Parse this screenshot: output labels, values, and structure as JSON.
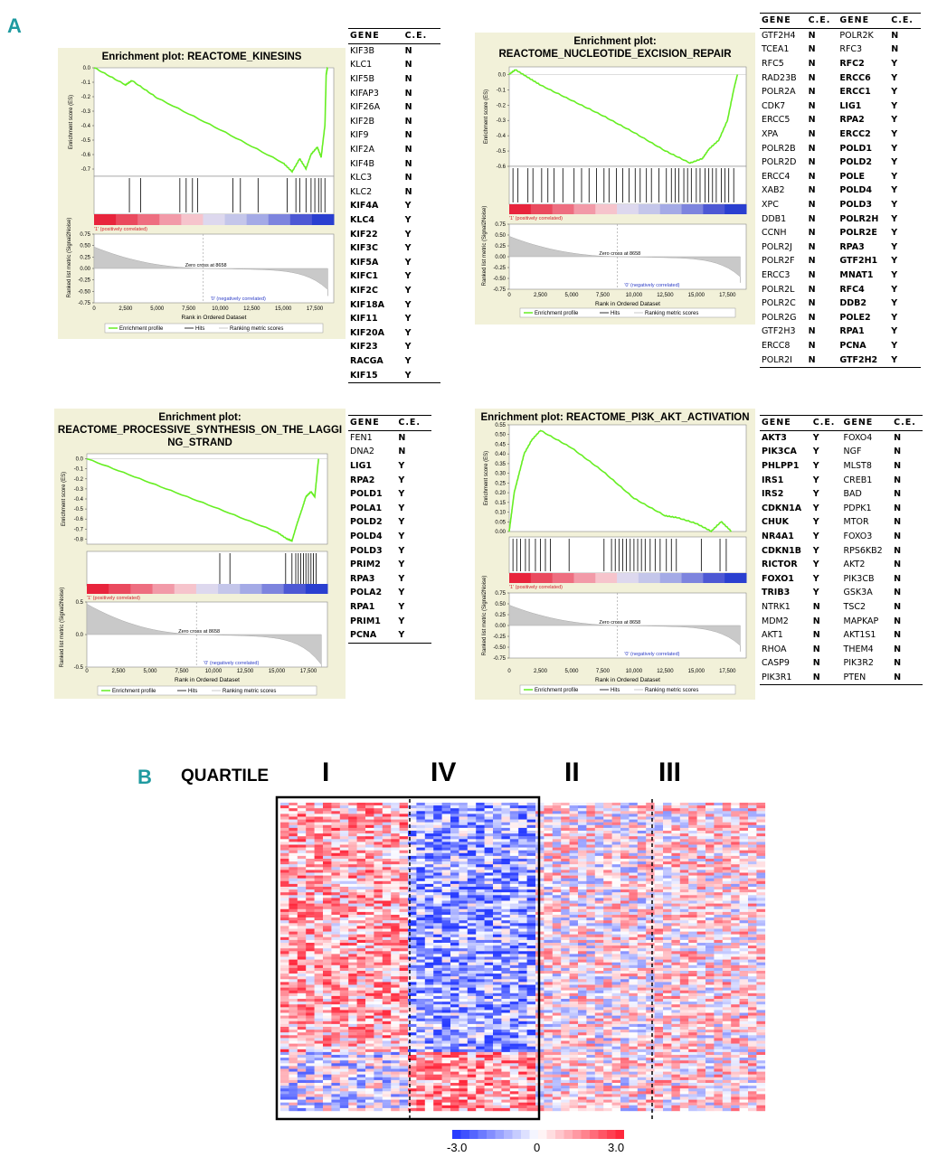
{
  "panel_a_label": "A",
  "panel_b_label": "B",
  "axis_labels": {
    "es": "Enrichment score (ES)",
    "metric": "Ranked list metric (Signal2Noise)",
    "rank": "Rank in Ordered Dataset",
    "pos": "'1' (positively correlated)",
    "neg": "'0' (negatively correlated)",
    "zero_cross": "Zero cross at 8658"
  },
  "legend": {
    "profile": "Enrichment profile",
    "hits": "Hits",
    "ranking": "Ranking metric scores"
  },
  "colors": {
    "profile": "#66ee22",
    "teal": "#1f9aa0",
    "panel_bg": "#f2f1d9",
    "red": "#e8243c",
    "blue": "#2a3fd0"
  },
  "chart_data": [
    {
      "type": "line",
      "title": "Enrichment plot: REACTOME_KINESINS",
      "x_ticks": [
        "0",
        "2,500",
        "5,000",
        "7,500",
        "10,000",
        "12,500",
        "15,000",
        "17,500"
      ],
      "xlim": [
        0,
        19000
      ],
      "ylim": [
        -0.75,
        0.0
      ],
      "y_ticks": [
        "0.0",
        "-0.1",
        "-0.2",
        "-0.3",
        "-0.4",
        "-0.5",
        "-0.6",
        "-0.7"
      ],
      "metric_ticks": [
        "0.75",
        "0.50",
        "0.25",
        "0.00",
        "-0.25",
        "-0.50",
        "-0.75"
      ],
      "es_curve": [
        [
          0,
          0
        ],
        [
          2500,
          -0.12
        ],
        [
          3000,
          -0.09
        ],
        [
          5000,
          -0.21
        ],
        [
          10000,
          -0.43
        ],
        [
          15000,
          -0.66
        ],
        [
          15700,
          -0.72
        ],
        [
          16300,
          -0.63
        ],
        [
          16800,
          -0.7
        ],
        [
          17200,
          -0.6
        ],
        [
          17700,
          -0.55
        ],
        [
          18000,
          -0.62
        ],
        [
          18300,
          -0.4
        ],
        [
          18400,
          -0.05
        ],
        [
          18500,
          0
        ]
      ],
      "hits": [
        2800,
        3700,
        6800,
        7300,
        7800,
        8200,
        11000,
        11600,
        13000,
        15300,
        16000,
        16300,
        16800,
        17200,
        17500,
        17800,
        18000,
        18300
      ]
    },
    {
      "type": "line",
      "title": "Enrichment plot:\nREACTOME_NUCLEOTIDE_EXCISION_REPAIR",
      "x_ticks": [
        "0",
        "2,500",
        "5,000",
        "7,500",
        "10,000",
        "12,500",
        "15,000",
        "17,500"
      ],
      "xlim": [
        0,
        19000
      ],
      "ylim": [
        -0.6,
        0.05
      ],
      "y_ticks": [
        "0.0",
        "-0.1",
        "-0.2",
        "-0.3",
        "-0.4",
        "-0.5",
        "-0.6"
      ],
      "metric_ticks": [
        "0.75",
        "0.50",
        "0.25",
        "0.00",
        "-0.25",
        "-0.50",
        "-0.75"
      ],
      "es_curve": [
        [
          0,
          0
        ],
        [
          500,
          0.03
        ],
        [
          1500,
          -0.02
        ],
        [
          2500,
          -0.07
        ],
        [
          5000,
          -0.17
        ],
        [
          7500,
          -0.27
        ],
        [
          10000,
          -0.38
        ],
        [
          12500,
          -0.5
        ],
        [
          14500,
          -0.58
        ],
        [
          15500,
          -0.55
        ],
        [
          16000,
          -0.49
        ],
        [
          16800,
          -0.43
        ],
        [
          17500,
          -0.3
        ],
        [
          18000,
          -0.1
        ],
        [
          18300,
          0.0
        ]
      ],
      "hits": [
        300,
        700,
        1500,
        1900,
        2600,
        3100,
        3600,
        4300,
        5200,
        5800,
        6400,
        7000,
        7600,
        8000,
        8600,
        9100,
        9600,
        10100,
        10500,
        11000,
        11400,
        12000,
        12600,
        13000,
        13300,
        13600,
        14000,
        14300,
        14600,
        15000,
        15300,
        15700,
        16000,
        16300,
        16600,
        17000,
        17300,
        17600,
        18000
      ]
    },
    {
      "type": "line",
      "title": "Enrichment plot:\nREACTOME_PROCESSIVE_SYNTHESIS_ON_THE_LAGGI\nNG_STRAND",
      "x_ticks": [
        "0",
        "2,500",
        "5,000",
        "7,500",
        "10,000",
        "12,500",
        "15,000",
        "17,500"
      ],
      "xlim": [
        0,
        19000
      ],
      "ylim": [
        -0.85,
        0.05
      ],
      "y_ticks": [
        "0.0",
        "-0.1",
        "-0.2",
        "-0.3",
        "-0.4",
        "-0.5",
        "-0.6",
        "-0.7",
        "-0.8"
      ],
      "metric_ticks": [
        "0.5",
        "0.0",
        "-0.5"
      ],
      "es_curve": [
        [
          0,
          0
        ],
        [
          5000,
          -0.24
        ],
        [
          10000,
          -0.48
        ],
        [
          15000,
          -0.73
        ],
        [
          15800,
          -0.8
        ],
        [
          16200,
          -0.82
        ],
        [
          16600,
          -0.65
        ],
        [
          17000,
          -0.5
        ],
        [
          17300,
          -0.38
        ],
        [
          17700,
          -0.33
        ],
        [
          18000,
          -0.38
        ],
        [
          18300,
          0.0
        ]
      ],
      "hits": [
        10500,
        11300,
        15700,
        16200,
        16500,
        16700,
        16900,
        17100,
        17300,
        17500,
        17700,
        17900,
        18100
      ]
    },
    {
      "type": "line",
      "title": "Enrichment plot: REACTOME_PI3K_AKT_ACTIVATION",
      "x_ticks": [
        "0",
        "2,500",
        "5,000",
        "7,500",
        "10,000",
        "12,500",
        "15,000",
        "17,500"
      ],
      "xlim": [
        0,
        19000
      ],
      "ylim": [
        0.0,
        0.55
      ],
      "y_ticks": [
        "0.55",
        "0.50",
        "0.45",
        "0.40",
        "0.35",
        "0.30",
        "0.25",
        "0.20",
        "0.15",
        "0.10",
        "0.05",
        "0.00"
      ],
      "metric_ticks": [
        "0.75",
        "0.50",
        "0.25",
        "0.00",
        "-0.25",
        "-0.50",
        "-0.75"
      ],
      "es_curve": [
        [
          0,
          0
        ],
        [
          200,
          0.1
        ],
        [
          400,
          0.2
        ],
        [
          800,
          0.3
        ],
        [
          1200,
          0.4
        ],
        [
          1800,
          0.47
        ],
        [
          2500,
          0.52
        ],
        [
          5000,
          0.43
        ],
        [
          7500,
          0.31
        ],
        [
          10000,
          0.17
        ],
        [
          12500,
          0.08
        ],
        [
          13500,
          0.07
        ],
        [
          15000,
          0.04
        ],
        [
          16200,
          0.0
        ],
        [
          17000,
          0.05
        ],
        [
          17800,
          0.0
        ]
      ],
      "hits": [
        300,
        600,
        900,
        1300,
        1600,
        2100,
        2500,
        2900,
        3300,
        4800,
        7600,
        8200,
        8500,
        8800,
        9100,
        9400,
        9700,
        10000,
        10300,
        10600,
        10900,
        11300,
        11700,
        12100,
        12600,
        13000,
        13400,
        15400,
        16900,
        17400
      ]
    }
  ],
  "gene_tables": {
    "kinesins": {
      "headers": [
        "GENE",
        "C.E."
      ],
      "rows": [
        [
          "KIF3B",
          "N"
        ],
        [
          "KLC1",
          "N"
        ],
        [
          "KIF5B",
          "N"
        ],
        [
          "KIFAP3",
          "N"
        ],
        [
          "KIF26A",
          "N"
        ],
        [
          "KIF2B",
          "N"
        ],
        [
          "KIF9",
          "N"
        ],
        [
          "KIF2A",
          "N"
        ],
        [
          "KIF4B",
          "N"
        ],
        [
          "KLC3",
          "N"
        ],
        [
          "KLC2",
          "N"
        ],
        [
          "KIF4A",
          "Y"
        ],
        [
          "KLC4",
          "Y"
        ],
        [
          "KIF22",
          "Y"
        ],
        [
          "KIF3C",
          "Y"
        ],
        [
          "KIF5A",
          "Y"
        ],
        [
          "KIFC1",
          "Y"
        ],
        [
          "KIF2C",
          "Y"
        ],
        [
          "KIF18A",
          "Y"
        ],
        [
          "KIF11",
          "Y"
        ],
        [
          "KIF20A",
          "Y"
        ],
        [
          "KIF23",
          "Y"
        ],
        [
          "RACGA",
          "Y"
        ],
        [
          "KIF15",
          "Y"
        ]
      ]
    },
    "ner": {
      "headers": [
        "GENE",
        "C.E.",
        "GENE",
        "C.E."
      ],
      "rows": [
        [
          "GTF2H4",
          "N",
          "POLR2K",
          "N"
        ],
        [
          "TCEA1",
          "N",
          "RFC3",
          "N"
        ],
        [
          "RFC5",
          "N",
          "RFC2",
          "Y"
        ],
        [
          "RAD23B",
          "N",
          "ERCC6",
          "Y"
        ],
        [
          "POLR2A",
          "N",
          "ERCC1",
          "Y"
        ],
        [
          "CDK7",
          "N",
          "LIG1",
          "Y"
        ],
        [
          "ERCC5",
          "N",
          "RPA2",
          "Y"
        ],
        [
          "XPA",
          "N",
          "ERCC2",
          "Y"
        ],
        [
          "POLR2B",
          "N",
          "POLD1",
          "Y"
        ],
        [
          "POLR2D",
          "N",
          "POLD2",
          "Y"
        ],
        [
          "ERCC4",
          "N",
          "POLE",
          "Y"
        ],
        [
          "XAB2",
          "N",
          "POLD4",
          "Y"
        ],
        [
          "XPC",
          "N",
          "POLD3",
          "Y"
        ],
        [
          "DDB1",
          "N",
          "POLR2H",
          "Y"
        ],
        [
          "CCNH",
          "N",
          "POLR2E",
          "Y"
        ],
        [
          "POLR2J",
          "N",
          "RPA3",
          "Y"
        ],
        [
          "POLR2F",
          "N",
          "GTF2H1",
          "Y"
        ],
        [
          "ERCC3",
          "N",
          "MNAT1",
          "Y"
        ],
        [
          "POLR2L",
          "N",
          "RFC4",
          "Y"
        ],
        [
          "POLR2C",
          "N",
          "DDB2",
          "Y"
        ],
        [
          "POLR2G",
          "N",
          "POLE2",
          "Y"
        ],
        [
          "GTF2H3",
          "N",
          "RPA1",
          "Y"
        ],
        [
          "ERCC8",
          "N",
          "PCNA",
          "Y"
        ],
        [
          "POLR2I",
          "N",
          "GTF2H2",
          "Y"
        ]
      ]
    },
    "lagging": {
      "headers": [
        "GENE",
        "C.E."
      ],
      "rows": [
        [
          "FEN1",
          "N"
        ],
        [
          "DNA2",
          "N"
        ],
        [
          "LIG1",
          "Y"
        ],
        [
          "RPA2",
          "Y"
        ],
        [
          "POLD1",
          "Y"
        ],
        [
          "POLA1",
          "Y"
        ],
        [
          "POLD2",
          "Y"
        ],
        [
          "POLD4",
          "Y"
        ],
        [
          "POLD3",
          "Y"
        ],
        [
          "PRIM2",
          "Y"
        ],
        [
          "RPA3",
          "Y"
        ],
        [
          "POLA2",
          "Y"
        ],
        [
          "RPA1",
          "Y"
        ],
        [
          "PRIM1",
          "Y"
        ],
        [
          "PCNA",
          "Y"
        ]
      ]
    },
    "pi3k": {
      "headers": [
        "GENE",
        "C.E.",
        "GENE",
        "C.E."
      ],
      "rows": [
        [
          "AKT3",
          "Y",
          "FOXO4",
          "N"
        ],
        [
          "PIK3CA",
          "Y",
          "NGF",
          "N"
        ],
        [
          "PHLPP1",
          "Y",
          "MLST8",
          "N"
        ],
        [
          "IRS1",
          "Y",
          "CREB1",
          "N"
        ],
        [
          "IRS2",
          "Y",
          "BAD",
          "N"
        ],
        [
          "CDKN1A",
          "Y",
          "PDPK1",
          "N"
        ],
        [
          "CHUK",
          "Y",
          "MTOR",
          "N"
        ],
        [
          "NR4A1",
          "Y",
          "FOXO3",
          "N"
        ],
        [
          "CDKN1B",
          "Y",
          "RPS6KB2",
          "N"
        ],
        [
          "RICTOR",
          "Y",
          "AKT2",
          "N"
        ],
        [
          "FOXO1",
          "Y",
          "PIK3CB",
          "N"
        ],
        [
          "TRIB3",
          "Y",
          "GSK3A",
          "N"
        ],
        [
          "NTRK1",
          "N",
          "TSC2",
          "N"
        ],
        [
          "MDM2",
          "N",
          "MAPKAP",
          "N"
        ],
        [
          "AKT1",
          "N",
          "AKT1S1",
          "N"
        ],
        [
          "RHOA",
          "N",
          "THEM4",
          "N"
        ],
        [
          "CASP9",
          "N",
          "PIK3R2",
          "N"
        ],
        [
          "PIK3R1",
          "N",
          "PTEN",
          "N"
        ]
      ]
    }
  },
  "heatmap": {
    "quartile_label": "QUARTILE",
    "quartiles": [
      "I",
      "IV",
      "II",
      "III"
    ],
    "scale_min": "-3.0",
    "scale_mid": "0",
    "scale_max": "3.0"
  }
}
